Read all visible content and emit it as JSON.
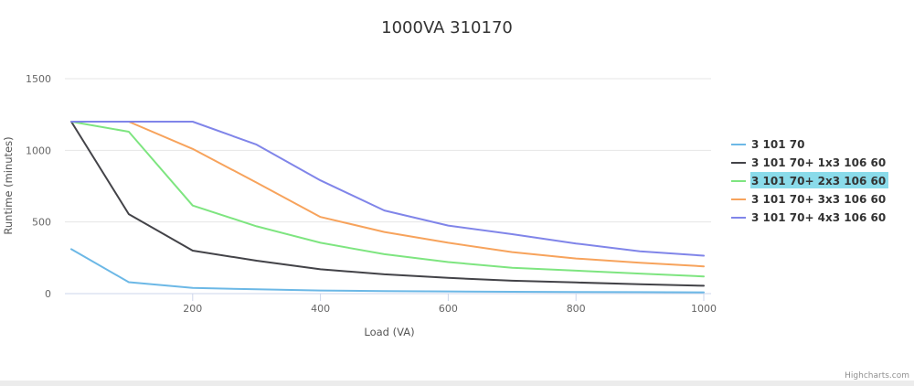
{
  "credits": "Highcharts.com",
  "chart_data": {
    "type": "line",
    "title": "1000VA 310170",
    "xlabel": "Load (VA)",
    "ylabel": "Runtime (minutes)",
    "xlim": [
      0,
      1000
    ],
    "ylim": [
      0,
      1500
    ],
    "xticks": [
      200,
      400,
      600,
      800,
      1000
    ],
    "yticks": [
      0,
      500,
      1000,
      1500
    ],
    "grid": true,
    "legend_position": "right",
    "highlighted_series": "3 101 70+ 2x3 106 60",
    "highlight_color": "#8adbea",
    "series": [
      {
        "name": "3 101 70",
        "color": "#6cb8e6",
        "x": [
          10,
          100,
          200,
          300,
          400,
          500,
          600,
          700,
          800,
          900,
          1000
        ],
        "y": [
          310,
          80,
          40,
          30,
          22,
          18,
          15,
          13,
          11,
          10,
          9
        ]
      },
      {
        "name": "3 101 70+ 1x3 106 60",
        "color": "#434348",
        "x": [
          10,
          100,
          200,
          300,
          400,
          500,
          600,
          700,
          800,
          900,
          1000
        ],
        "y": [
          1200,
          555,
          300,
          230,
          170,
          135,
          110,
          90,
          78,
          65,
          55
        ]
      },
      {
        "name": "3 101 70+ 2x3 106 60",
        "color": "#7ee580",
        "x": [
          10,
          100,
          200,
          300,
          400,
          500,
          600,
          700,
          800,
          900,
          1000
        ],
        "y": [
          1200,
          1130,
          615,
          470,
          355,
          275,
          220,
          180,
          160,
          140,
          120
        ]
      },
      {
        "name": "3 101 70+ 3x3 106 60",
        "color": "#f7a35c",
        "x": [
          10,
          100,
          200,
          300,
          400,
          500,
          600,
          700,
          800,
          900,
          1000
        ],
        "y": [
          1200,
          1200,
          1010,
          775,
          535,
          430,
          355,
          290,
          245,
          215,
          190
        ]
      },
      {
        "name": "3 101 70+ 4x3 106 60",
        "color": "#8085e9",
        "x": [
          10,
          100,
          200,
          300,
          400,
          500,
          600,
          700,
          800,
          900,
          1000
        ],
        "y": [
          1200,
          1200,
          1200,
          1040,
          790,
          580,
          475,
          415,
          350,
          295,
          265
        ]
      }
    ]
  }
}
